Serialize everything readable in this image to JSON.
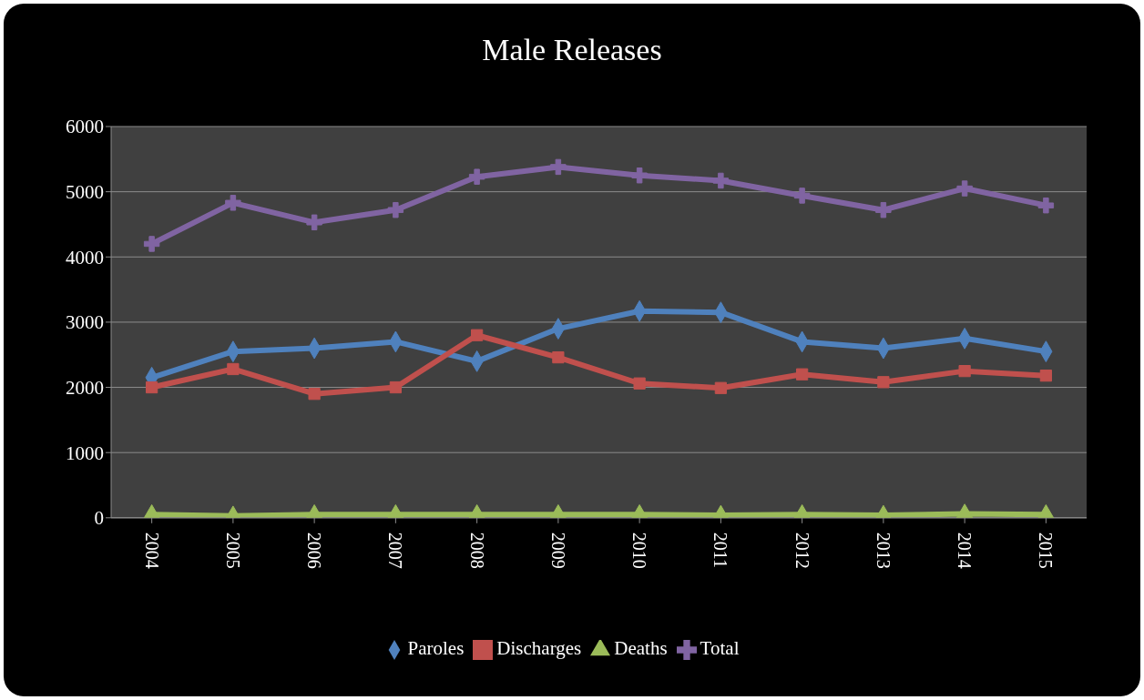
{
  "chart_data": {
    "type": "line",
    "title": "Male Releases",
    "categories": [
      "2004",
      "2005",
      "2006",
      "2007",
      "2008",
      "2009",
      "2010",
      "2011",
      "2012",
      "2013",
      "2014",
      "2015"
    ],
    "series": [
      {
        "name": "Paroles",
        "color": "#4f81bd",
        "marker": "diamond",
        "values": [
          2150,
          2550,
          2600,
          2700,
          2400,
          2900,
          3170,
          3150,
          2700,
          2600,
          2750,
          2550
        ]
      },
      {
        "name": "Discharges",
        "color": "#c0504d",
        "marker": "square",
        "values": [
          2000,
          2280,
          1900,
          2000,
          2800,
          2460,
          2060,
          1990,
          2200,
          2080,
          2250,
          2180
        ]
      },
      {
        "name": "Deaths",
        "color": "#9bbb59",
        "marker": "triangle",
        "values": [
          50,
          30,
          50,
          50,
          50,
          50,
          50,
          40,
          50,
          40,
          60,
          50
        ]
      },
      {
        "name": "Total",
        "color": "#8064a2",
        "marker": "cross",
        "values": [
          4200,
          4830,
          4530,
          4720,
          5230,
          5380,
          5250,
          5170,
          4940,
          4720,
          5050,
          4790
        ]
      }
    ],
    "ylim": [
      0,
      6000
    ],
    "yticks": [
      0,
      1000,
      2000,
      3000,
      4000,
      5000,
      6000
    ],
    "grid": "y",
    "legend": "bottom"
  }
}
